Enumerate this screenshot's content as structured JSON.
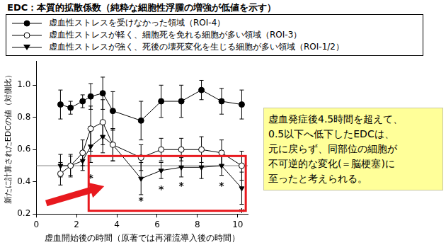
{
  "chart_data": {
    "type": "line",
    "title": "EDC：本質的拡散係数（純粋な細胞性浮腫の増強が低値を示す）",
    "x_label": "虚血開始後の時間（原著では再灌流導入後の時間）",
    "y_label": "新たに計算されたEDCの値（対側比）",
    "x": [
      1.2,
      1.7,
      2.3,
      2.7,
      3.3,
      3.8,
      5.2,
      6.2,
      7.2,
      8.2,
      9.2,
      10.2
    ],
    "series": [
      {
        "name": "虚血性ストレスを受けなかった領域（ROI-4）",
        "color": "#000000",
        "marker": "circle",
        "values": [
          0.88,
          0.86,
          0.9,
          0.93,
          0.95,
          0.84,
          0.78,
          0.9,
          0.9,
          0.97,
          0.9,
          0.88
        ],
        "errors": [
          0.09,
          0.04,
          0.04,
          0.08,
          0.1,
          0.12,
          0.12,
          0.1,
          0.1,
          0.06,
          0.08,
          0.09
        ]
      },
      {
        "name": "虚血性ストレスが軽く、細胞死を免れる細胞が多い領域（ROI-3）",
        "color": "#000000",
        "marker": "open_circle",
        "values": [
          0.45,
          0.5,
          0.58,
          0.73,
          0.77,
          0.63,
          0.55,
          0.6,
          0.6,
          0.6,
          0.58,
          0.5
        ],
        "errors": [
          0.07,
          0.07,
          0.08,
          0.14,
          0.14,
          0.1,
          0.08,
          0.07,
          0.07,
          0.08,
          0.08,
          0.09
        ]
      },
      {
        "name": "虚血性ストレスが強く、死後の壊死変化を生じる細胞が多い領域（ROI-1/2）",
        "color": "#000000",
        "marker": "triangle_down",
        "values": [
          0.5,
          0.5,
          0.53,
          0.62,
          0.68,
          0.63,
          0.42,
          0.47,
          0.49,
          0.49,
          0.5,
          0.36
        ],
        "errors": [
          0.07,
          0.06,
          0.06,
          0.1,
          0.1,
          0.1,
          0.1,
          0.05,
          0.06,
          0.07,
          0.06,
          0.1
        ]
      }
    ],
    "xlim": [
      0,
      10.5
    ],
    "xticks": [
      0,
      2,
      4,
      6,
      8,
      10
    ],
    "ylim": [
      0.2,
      1.15
    ],
    "yticks": [
      0.2,
      0.4,
      0.6,
      0.8,
      {
        "value": 1,
        "label": "1.0"
      }
    ],
    "grid": false,
    "reference_line": 0.5,
    "significance_marks": [
      {
        "x": 2.7,
        "y": 0.42,
        "text": "*"
      },
      {
        "x": 5.2,
        "y": 0.28,
        "text": "*"
      },
      {
        "x": 6.2,
        "y": 0.35,
        "text": "*"
      },
      {
        "x": 7.2,
        "y": 0.37,
        "text": "*"
      },
      {
        "x": 9.2,
        "y": 0.37,
        "text": "*"
      },
      {
        "x": 10.2,
        "y": 0.21,
        "text": "*"
      }
    ],
    "highlight_box": {
      "xlim": [
        2.6,
        10.4
      ],
      "ylim": [
        0.22,
        0.56
      ],
      "color": "#e8191e"
    },
    "annotation": {
      "lines": [
        "虚血発症後4.5時間を超えて、",
        "0.5以下へ低下したEDCは、",
        "元に戻らず、同部位の細胞が",
        "不可逆的な変化(＝脳梗塞)に",
        "至ったと考えられる。"
      ]
    }
  }
}
